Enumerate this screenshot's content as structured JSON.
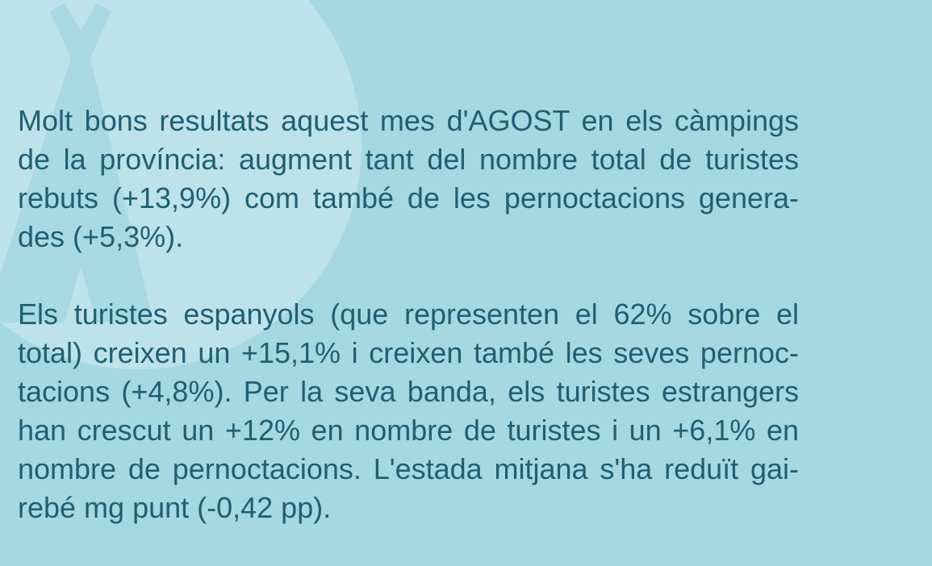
{
  "paragraphs": [
    {
      "lines": [
        "Molt bons resultats aquest mes d'AGOST en els càmpings",
        "de la província: augment tant del nombre total de turistes",
        "rebuts (+13,9%) com també de les pernoctacions genera-",
        "des (+5,3%)."
      ]
    },
    {
      "lines": [
        "Els turistes espanyols (que representen el 62% sobre el",
        "total) creixen un +15,1% i creixen també les seves pernoc-",
        "tacions (+4,8%). Per la seva banda, els turistes estrangers",
        "han crescut un +12% en nombre de turistes i un +6,1% en",
        "nombre de pernoctacions. L'estada mitjana s'ha reduït gai-",
        "rebé mg punt (-0,42 pp)."
      ]
    }
  ]
}
